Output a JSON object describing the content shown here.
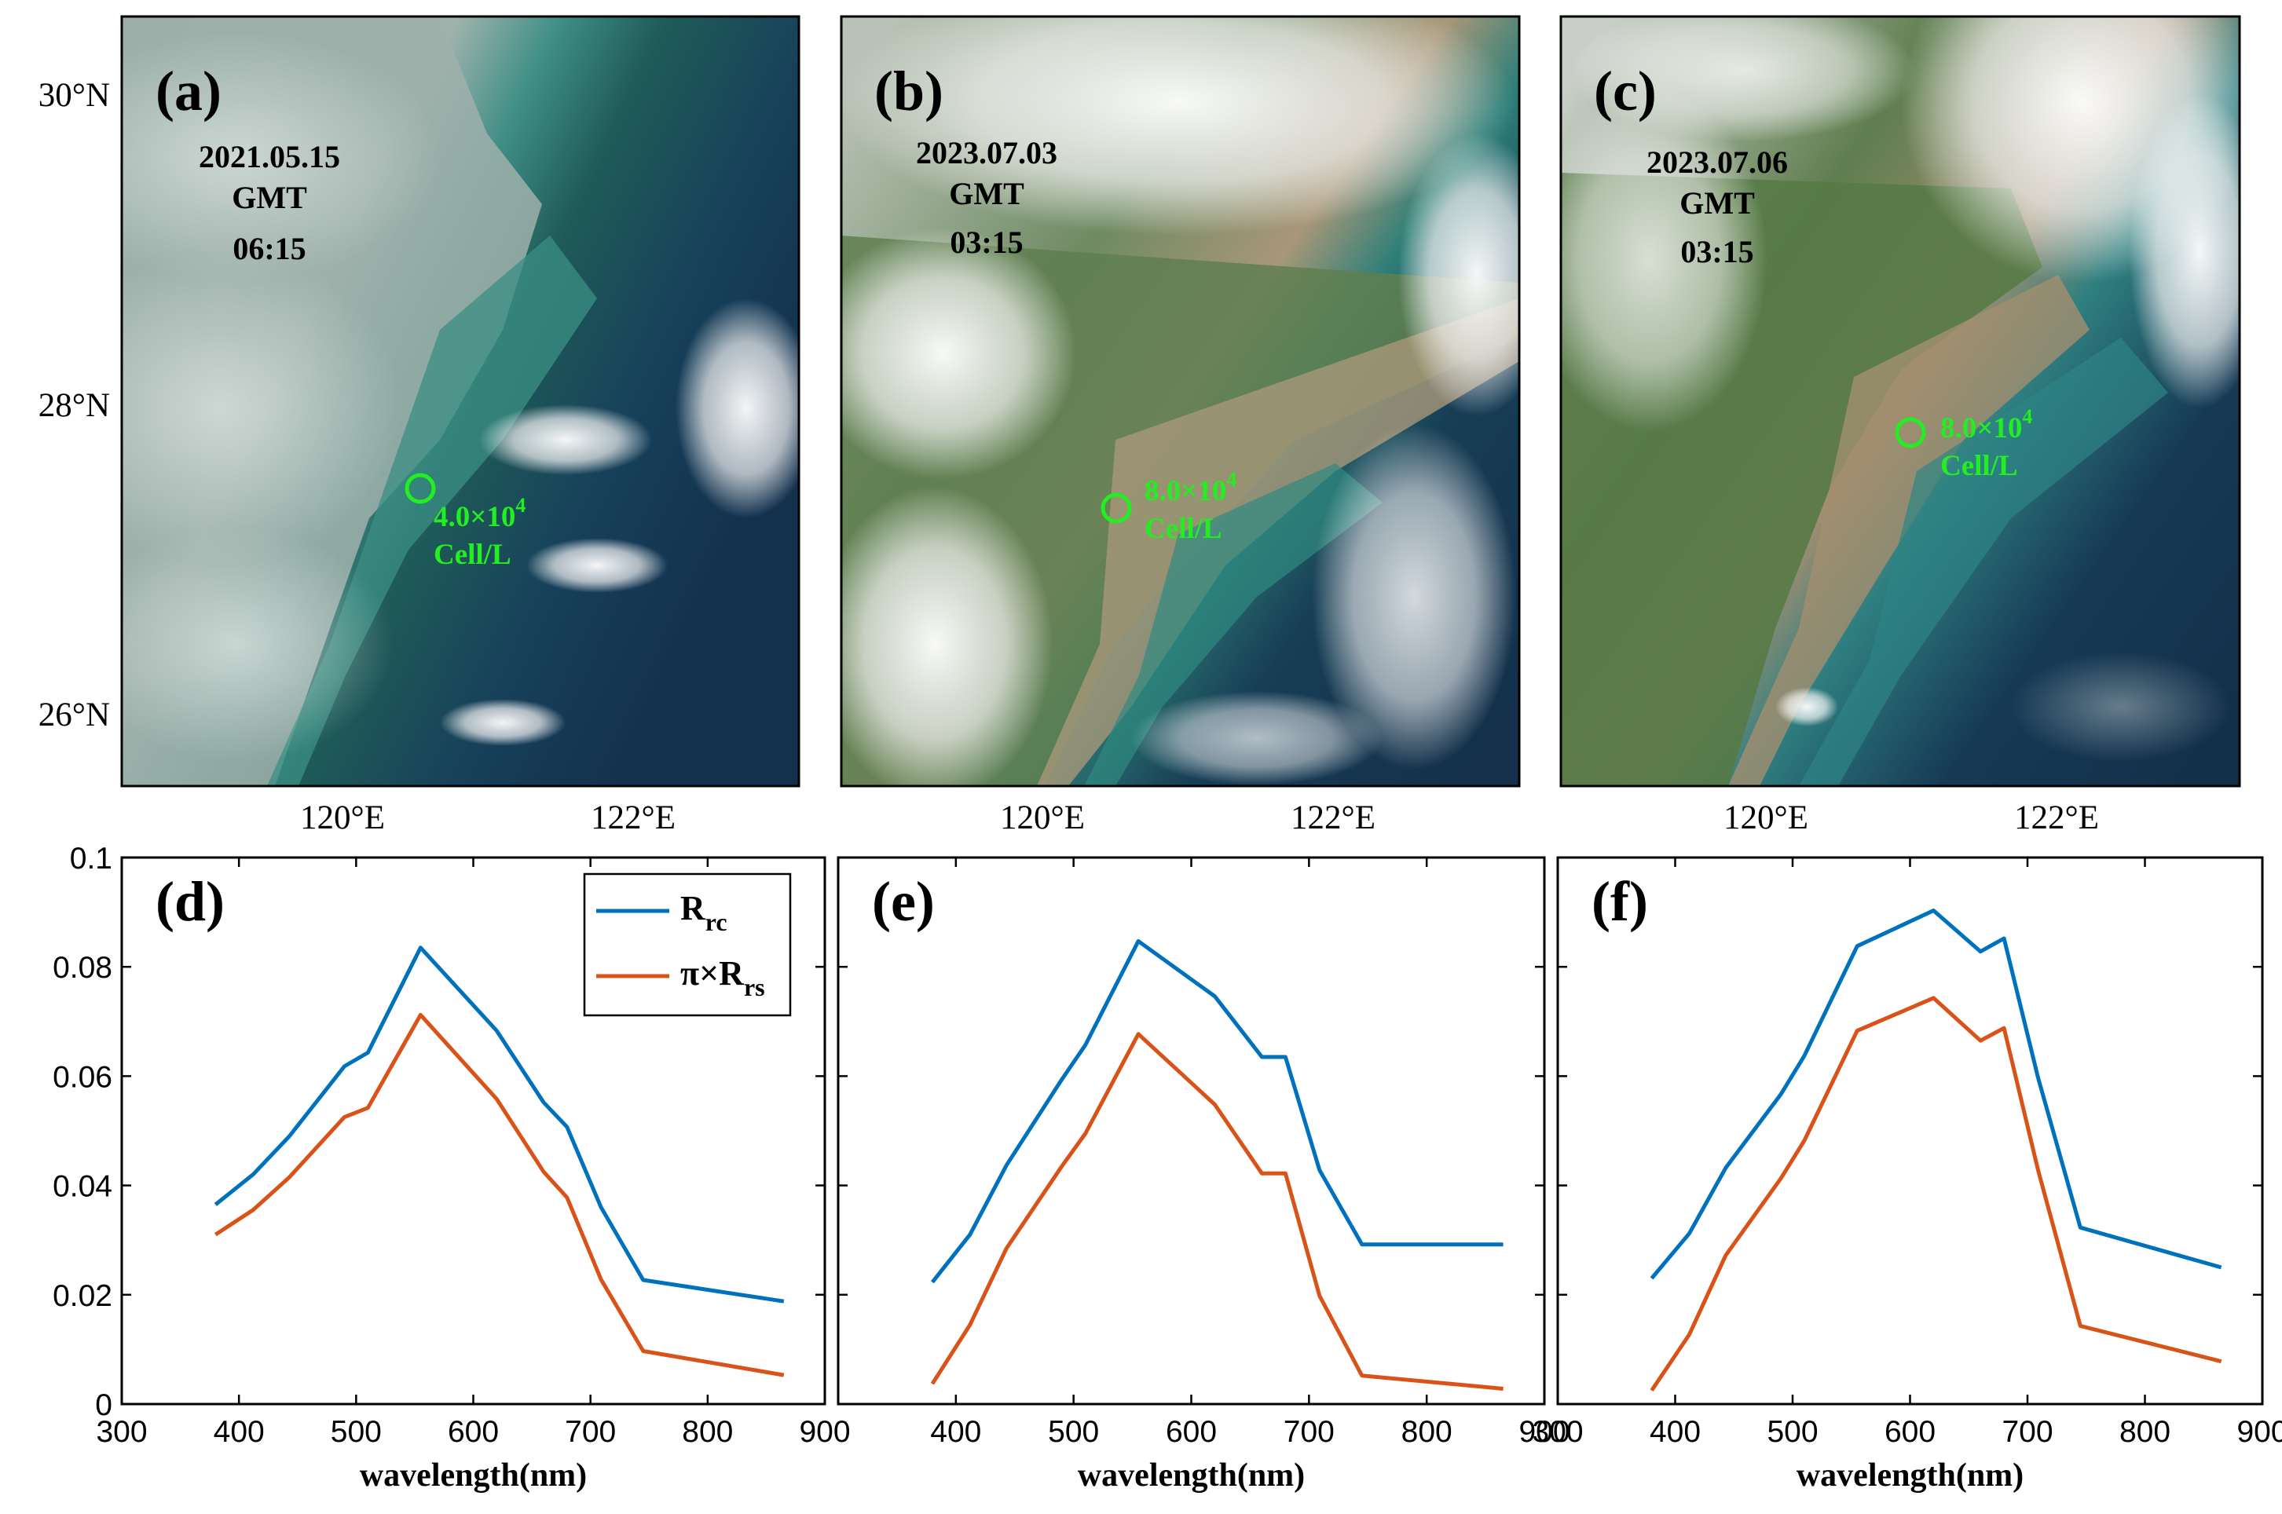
{
  "colors": {
    "rrc": "#0072BD",
    "pirrs": "#D95319",
    "marker": "#22ee22",
    "land_green": "#3f6b34",
    "sea_dark": "#14324f",
    "turbid": "#b99a76"
  },
  "maps": {
    "lat_ticks": [
      "30°N",
      "28°N",
      "26°N"
    ],
    "lon_ticks": [
      "120°E",
      "122°E"
    ],
    "cell_unit": "Cell/L",
    "panels": [
      {
        "label": "(a)",
        "date": "2021.05.15",
        "zone": "GMT",
        "time": "06:15",
        "density": "4.0×10",
        "exponent": "4"
      },
      {
        "label": "(b)",
        "date": "2023.07.03",
        "zone": "GMT",
        "time": "03:15",
        "density": "8.0×10",
        "exponent": "4"
      },
      {
        "label": "(c)",
        "date": "2023.07.06",
        "zone": "GMT",
        "time": "03:15",
        "density": "8.0×10",
        "exponent": "4"
      }
    ]
  },
  "chart_data": [
    {
      "type": "line",
      "panel": "(d)",
      "xlabel": "wavelength(nm)",
      "ylabel": "",
      "xlim": [
        300,
        900
      ],
      "ylim": [
        0,
        0.1
      ],
      "xticks": [
        "300",
        "400",
        "500",
        "600",
        "700",
        "800",
        "900"
      ],
      "yticks": [
        "0",
        "0.02",
        "0.04",
        "0.06",
        "0.08",
        "0.1"
      ],
      "legend": {
        "position": "top-right",
        "entries": [
          {
            "base": "R",
            "sub": "rc"
          },
          {
            "base": "π×R",
            "sub": "rs"
          }
        ]
      },
      "series": [
        {
          "name": "Rrc",
          "x": [
            380,
            412,
            443,
            490,
            510,
            555,
            620,
            660,
            680,
            709,
            745,
            865
          ],
          "values": [
            0.0365,
            0.042,
            0.049,
            0.0618,
            0.0643,
            0.0835,
            0.0683,
            0.0552,
            0.0507,
            0.036,
            0.0227,
            0.0188
          ]
        },
        {
          "name": "π×Rrs",
          "x": [
            380,
            412,
            443,
            490,
            510,
            555,
            620,
            660,
            680,
            709,
            745,
            865
          ],
          "values": [
            0.031,
            0.0355,
            0.0415,
            0.0525,
            0.0542,
            0.0712,
            0.0558,
            0.0425,
            0.0378,
            0.0228,
            0.0097,
            0.0053
          ]
        }
      ]
    },
    {
      "type": "line",
      "panel": "(e)",
      "xlabel": "wavelength(nm)",
      "ylabel": "",
      "xlim": [
        300,
        900
      ],
      "ylim": [
        0,
        0.1
      ],
      "xticks": [
        "400",
        "500",
        "600",
        "700",
        "800",
        "900"
      ],
      "yticks": [],
      "series": [
        {
          "name": "Rrc",
          "x": [
            380,
            412,
            443,
            490,
            510,
            555,
            620,
            660,
            680,
            709,
            745,
            865
          ],
          "values": [
            0.0223,
            0.031,
            0.0437,
            0.0594,
            0.0657,
            0.0847,
            0.0746,
            0.0635,
            0.0635,
            0.0428,
            0.0292,
            0.0292
          ]
        },
        {
          "name": "π×Rrs",
          "x": [
            380,
            412,
            443,
            490,
            510,
            555,
            620,
            660,
            680,
            709,
            745,
            865
          ],
          "values": [
            0.0037,
            0.0145,
            0.0285,
            0.0435,
            0.0495,
            0.0677,
            0.0548,
            0.0422,
            0.0422,
            0.0198,
            0.0052,
            0.0028
          ]
        }
      ]
    },
    {
      "type": "line",
      "panel": "(f)",
      "xlabel": "wavelength(nm)",
      "ylabel": "",
      "xlim": [
        300,
        900
      ],
      "ylim": [
        0,
        0.1
      ],
      "xticks": [
        "300",
        "400",
        "500",
        "600",
        "700",
        "800",
        "900"
      ],
      "yticks": [],
      "series": [
        {
          "name": "Rrc",
          "x": [
            380,
            412,
            443,
            490,
            510,
            555,
            620,
            660,
            680,
            709,
            745,
            865
          ],
          "values": [
            0.023,
            0.0312,
            0.0432,
            0.0567,
            0.0637,
            0.0838,
            0.0903,
            0.0828,
            0.0852,
            0.0597,
            0.0323,
            0.025
          ]
        },
        {
          "name": "π×Rrs",
          "x": [
            380,
            412,
            443,
            490,
            510,
            555,
            620,
            660,
            680,
            709,
            745,
            865
          ],
          "values": [
            0.0025,
            0.0127,
            0.0272,
            0.0413,
            0.0482,
            0.0683,
            0.0743,
            0.0665,
            0.0688,
            0.0428,
            0.0143,
            0.0078
          ]
        }
      ]
    }
  ]
}
